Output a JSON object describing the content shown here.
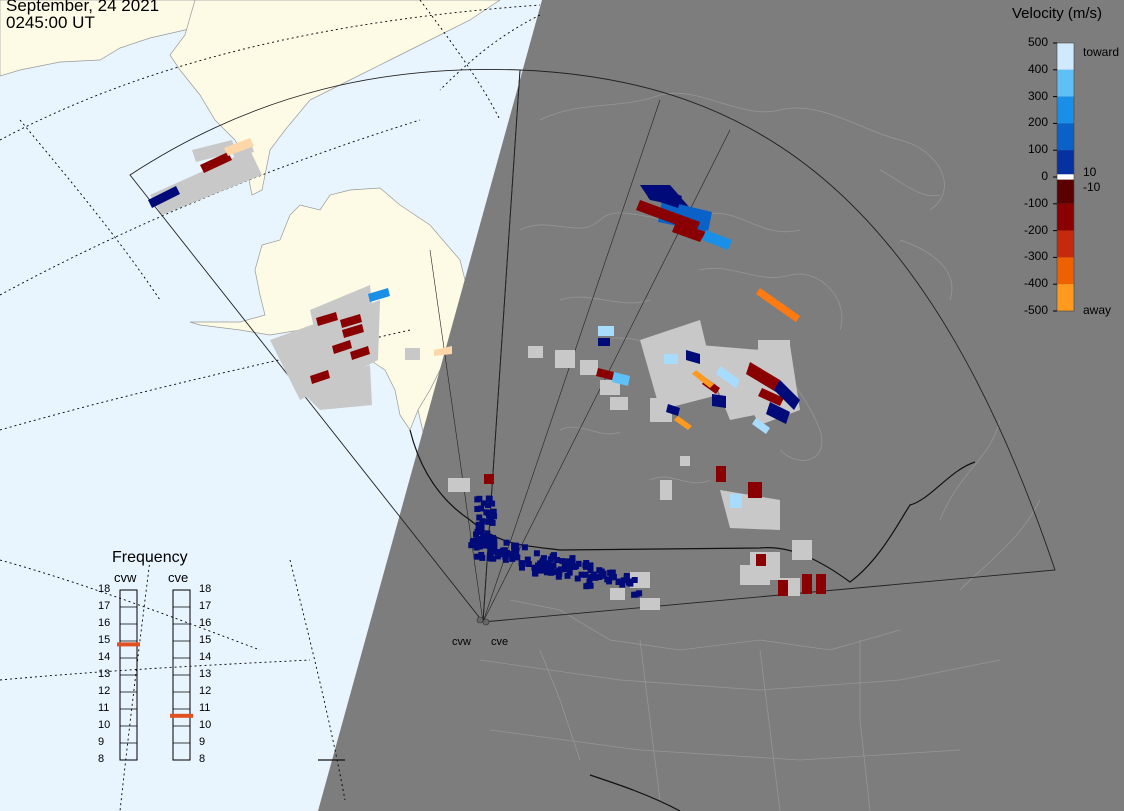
{
  "header": {
    "date": "September, 24 2021",
    "time": "0245:00 UT"
  },
  "colorbar": {
    "title": "Velocity (m/s)",
    "ticks": [
      "500",
      "400",
      "300",
      "200",
      "100",
      "0",
      "-100",
      "-200",
      "-300",
      "-400",
      "-500"
    ],
    "threshold_labels": [
      "10",
      "-10"
    ],
    "top_label": "toward",
    "bottom_label": "away",
    "stops": [
      {
        "v": 500,
        "color": "#cfeaff"
      },
      {
        "v": 400,
        "color": "#5fbff7"
      },
      {
        "v": 300,
        "color": "#1a8fe8"
      },
      {
        "v": 200,
        "color": "#0a62c8"
      },
      {
        "v": 100,
        "color": "#0532a0"
      },
      {
        "v": 10,
        "color": "#000a78"
      },
      {
        "v": -10,
        "color": "#5a0000"
      },
      {
        "v": -100,
        "color": "#8a0000"
      },
      {
        "v": -200,
        "color": "#c52a0c"
      },
      {
        "v": -300,
        "color": "#ee6000"
      },
      {
        "v": -400,
        "color": "#ff9a1e"
      },
      {
        "v": -500,
        "color": "#ffd6a8"
      }
    ]
  },
  "frequency": {
    "title": "Frequency",
    "range": [
      8,
      18
    ],
    "radars": [
      {
        "name": "cvw",
        "value": 14.8,
        "marker_color": "#e05020"
      },
      {
        "name": "cve",
        "value": 10.6,
        "marker_color": "#e05020"
      }
    ]
  },
  "stations": [
    "cvw",
    "cve"
  ],
  "colors": {
    "ocean": "#e8f5ff",
    "land": "#fdfbe6",
    "night": "#7d7d7d",
    "ground_scatter": "#c8c8c8"
  }
}
